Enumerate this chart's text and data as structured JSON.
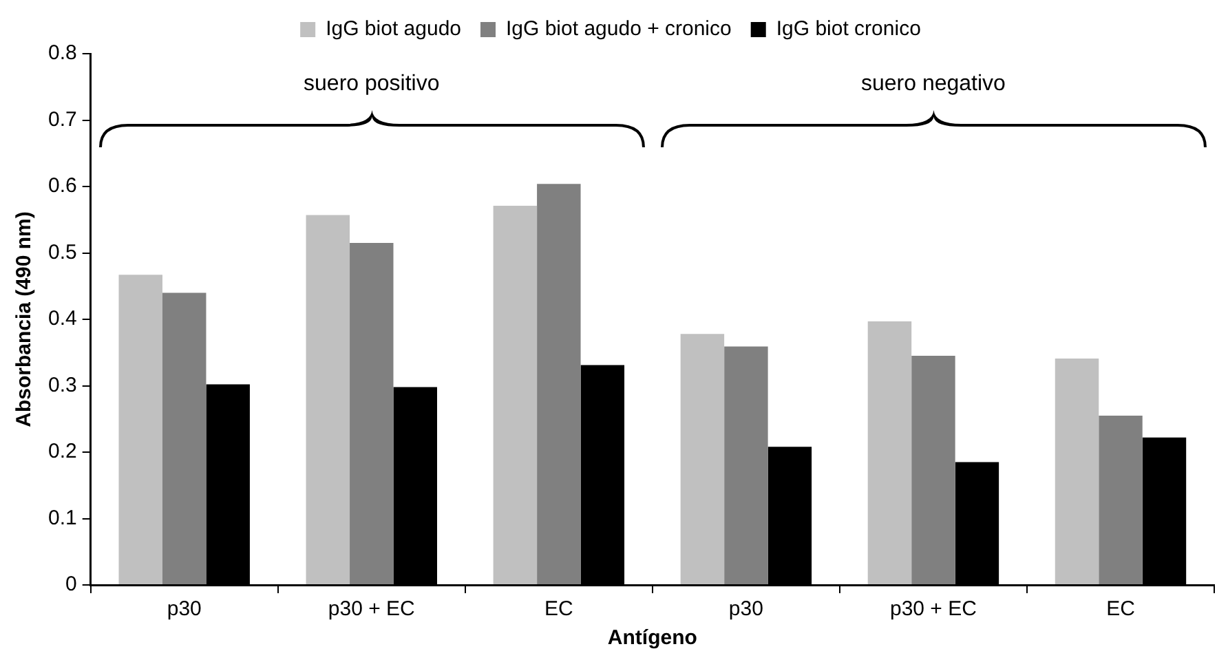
{
  "chart_data": {
    "type": "bar",
    "xlabel": "Antígeno",
    "ylabel": "Absorbancia (490 nm)",
    "categories": [
      "p30",
      "p30 + EC",
      "EC",
      "p30",
      "p30 + EC",
      "EC"
    ],
    "series": [
      {
        "name": "IgG biot agudo",
        "color": "#c0c0c0",
        "values": [
          0.467,
          0.557,
          0.571,
          0.378,
          0.397,
          0.341
        ]
      },
      {
        "name": "IgG biot agudo + cronico",
        "color": "#808080",
        "values": [
          0.44,
          0.515,
          0.604,
          0.359,
          0.345,
          0.255
        ]
      },
      {
        "name": "IgG biot cronico",
        "color": "#000000",
        "values": [
          0.302,
          0.298,
          0.331,
          0.208,
          0.185,
          0.222
        ]
      }
    ],
    "ylim": [
      0,
      0.8
    ],
    "yticks": [
      0,
      0.1,
      0.2,
      0.3,
      0.4,
      0.5,
      0.6,
      0.7,
      0.8
    ],
    "annotations": [
      "suero positivo",
      "suero negativo"
    ],
    "grid": false,
    "legend": "top"
  }
}
